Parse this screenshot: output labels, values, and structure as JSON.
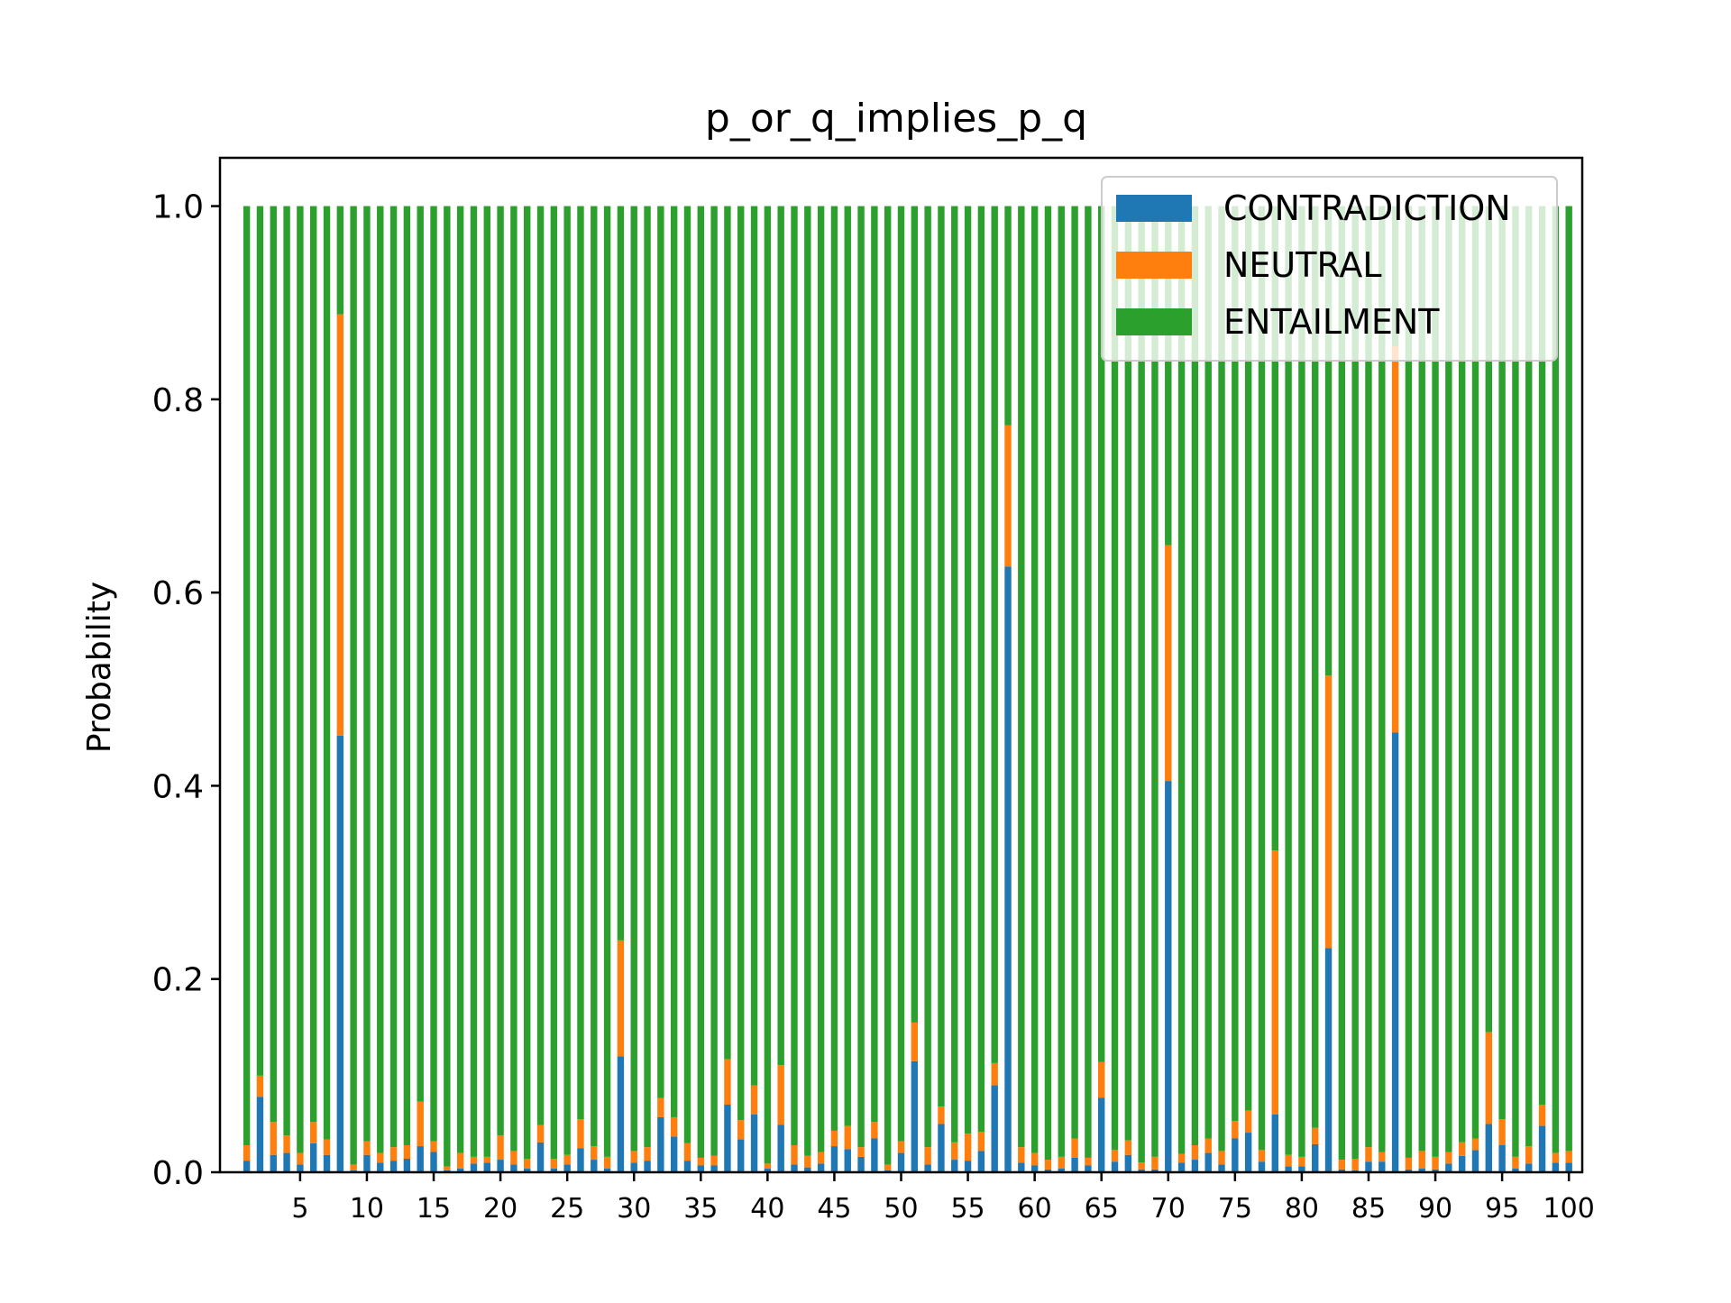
{
  "chart_data": {
    "type": "bar",
    "stacked": true,
    "title": "p_or_q_implies_p_q",
    "xlabel": "",
    "ylabel": "Probability",
    "xlim": [
      -1,
      101
    ],
    "ylim": [
      0,
      1.05
    ],
    "x_tick_labels": [
      "5",
      "10",
      "15",
      "20",
      "25",
      "30",
      "35",
      "40",
      "45",
      "50",
      "55",
      "60",
      "65",
      "70",
      "75",
      "80",
      "85",
      "90",
      "95",
      "100"
    ],
    "y_tick_labels": [
      "0.0",
      "0.2",
      "0.4",
      "0.6",
      "0.8",
      "1.0"
    ],
    "legend_position": "top-right",
    "grid": false,
    "categories": [
      1,
      2,
      3,
      4,
      5,
      6,
      7,
      8,
      9,
      10,
      11,
      12,
      13,
      14,
      15,
      16,
      17,
      18,
      19,
      20,
      21,
      22,
      23,
      24,
      25,
      26,
      27,
      28,
      29,
      30,
      31,
      32,
      33,
      34,
      35,
      36,
      37,
      38,
      39,
      40,
      41,
      42,
      43,
      44,
      45,
      46,
      47,
      48,
      49,
      50,
      51,
      52,
      53,
      54,
      55,
      56,
      57,
      58,
      59,
      60,
      61,
      62,
      63,
      64,
      65,
      66,
      67,
      68,
      69,
      70,
      71,
      72,
      73,
      74,
      75,
      76,
      77,
      78,
      79,
      80,
      81,
      82,
      83,
      84,
      85,
      86,
      87,
      88,
      89,
      90,
      91,
      92,
      93,
      94,
      95,
      96,
      97,
      98,
      99,
      100
    ],
    "series": [
      {
        "name": "CONTRADICTION",
        "color": "#1f77b4",
        "values": [
          0.012,
          0.078,
          0.018,
          0.02,
          0.008,
          0.03,
          0.018,
          0.452,
          0.002,
          0.018,
          0.01,
          0.012,
          0.014,
          0.027,
          0.021,
          0.002,
          0.004,
          0.009,
          0.01,
          0.013,
          0.008,
          0.004,
          0.031,
          0.004,
          0.008,
          0.025,
          0.013,
          0.004,
          0.12,
          0.01,
          0.012,
          0.057,
          0.037,
          0.012,
          0.007,
          0.007,
          0.07,
          0.034,
          0.06,
          0.004,
          0.049,
          0.008,
          0.005,
          0.009,
          0.027,
          0.024,
          0.016,
          0.035,
          0.002,
          0.02,
          0.115,
          0.008,
          0.05,
          0.013,
          0.012,
          0.022,
          0.09,
          0.627,
          0.01,
          0.007,
          0.003,
          0.004,
          0.015,
          0.007,
          0.077,
          0.011,
          0.018,
          0.003,
          0.003,
          0.405,
          0.01,
          0.013,
          0.02,
          0.008,
          0.035,
          0.041,
          0.011,
          0.06,
          0.006,
          0.006,
          0.029,
          0.232,
          0.003,
          0.002,
          0.011,
          0.011,
          0.455,
          0.003,
          0.004,
          0.003,
          0.009,
          0.017,
          0.023,
          0.05,
          0.028,
          0.004,
          0.009,
          0.048,
          0.01,
          0.01
        ]
      },
      {
        "name": "NEUTRAL",
        "color": "#ff7f0e",
        "values": [
          0.016,
          0.022,
          0.034,
          0.018,
          0.012,
          0.022,
          0.016,
          0.436,
          0.006,
          0.014,
          0.01,
          0.014,
          0.014,
          0.046,
          0.011,
          0.004,
          0.016,
          0.007,
          0.006,
          0.025,
          0.014,
          0.01,
          0.018,
          0.01,
          0.01,
          0.03,
          0.014,
          0.012,
          0.12,
          0.012,
          0.014,
          0.02,
          0.02,
          0.018,
          0.008,
          0.01,
          0.047,
          0.02,
          0.03,
          0.005,
          0.062,
          0.02,
          0.012,
          0.012,
          0.016,
          0.024,
          0.01,
          0.017,
          0.006,
          0.012,
          0.04,
          0.018,
          0.018,
          0.018,
          0.028,
          0.02,
          0.023,
          0.146,
          0.016,
          0.013,
          0.01,
          0.012,
          0.02,
          0.008,
          0.037,
          0.012,
          0.015,
          0.007,
          0.013,
          0.244,
          0.009,
          0.015,
          0.015,
          0.014,
          0.018,
          0.023,
          0.012,
          0.273,
          0.012,
          0.01,
          0.017,
          0.282,
          0.01,
          0.012,
          0.015,
          0.01,
          0.4,
          0.012,
          0.018,
          0.013,
          0.012,
          0.014,
          0.012,
          0.095,
          0.027,
          0.012,
          0.018,
          0.022,
          0.01,
          0.012
        ]
      },
      {
        "name": "ENTAILMENT",
        "color": "#2ca02c",
        "values": [
          0.972,
          0.9,
          0.948,
          0.962,
          0.98,
          0.948,
          0.966,
          0.112,
          0.992,
          0.968,
          0.98,
          0.974,
          0.972,
          0.927,
          0.968,
          0.994,
          0.98,
          0.984,
          0.984,
          0.962,
          0.978,
          0.986,
          0.951,
          0.986,
          0.982,
          0.945,
          0.973,
          0.984,
          0.76,
          0.978,
          0.974,
          0.923,
          0.943,
          0.97,
          0.985,
          0.983,
          0.883,
          0.946,
          0.91,
          0.991,
          0.889,
          0.972,
          0.983,
          0.979,
          0.957,
          0.952,
          0.974,
          0.948,
          0.992,
          0.968,
          0.845,
          0.974,
          0.932,
          0.969,
          0.96,
          0.958,
          0.887,
          0.227,
          0.974,
          0.98,
          0.987,
          0.984,
          0.965,
          0.985,
          0.886,
          0.977,
          0.967,
          0.99,
          0.984,
          0.351,
          0.981,
          0.972,
          0.965,
          0.978,
          0.947,
          0.936,
          0.977,
          0.667,
          0.982,
          0.984,
          0.954,
          0.486,
          0.987,
          0.986,
          0.974,
          0.979,
          0.145,
          0.985,
          0.978,
          0.984,
          0.979,
          0.969,
          0.965,
          0.855,
          0.945,
          0.984,
          0.973,
          0.93,
          0.98,
          0.978
        ]
      }
    ]
  }
}
